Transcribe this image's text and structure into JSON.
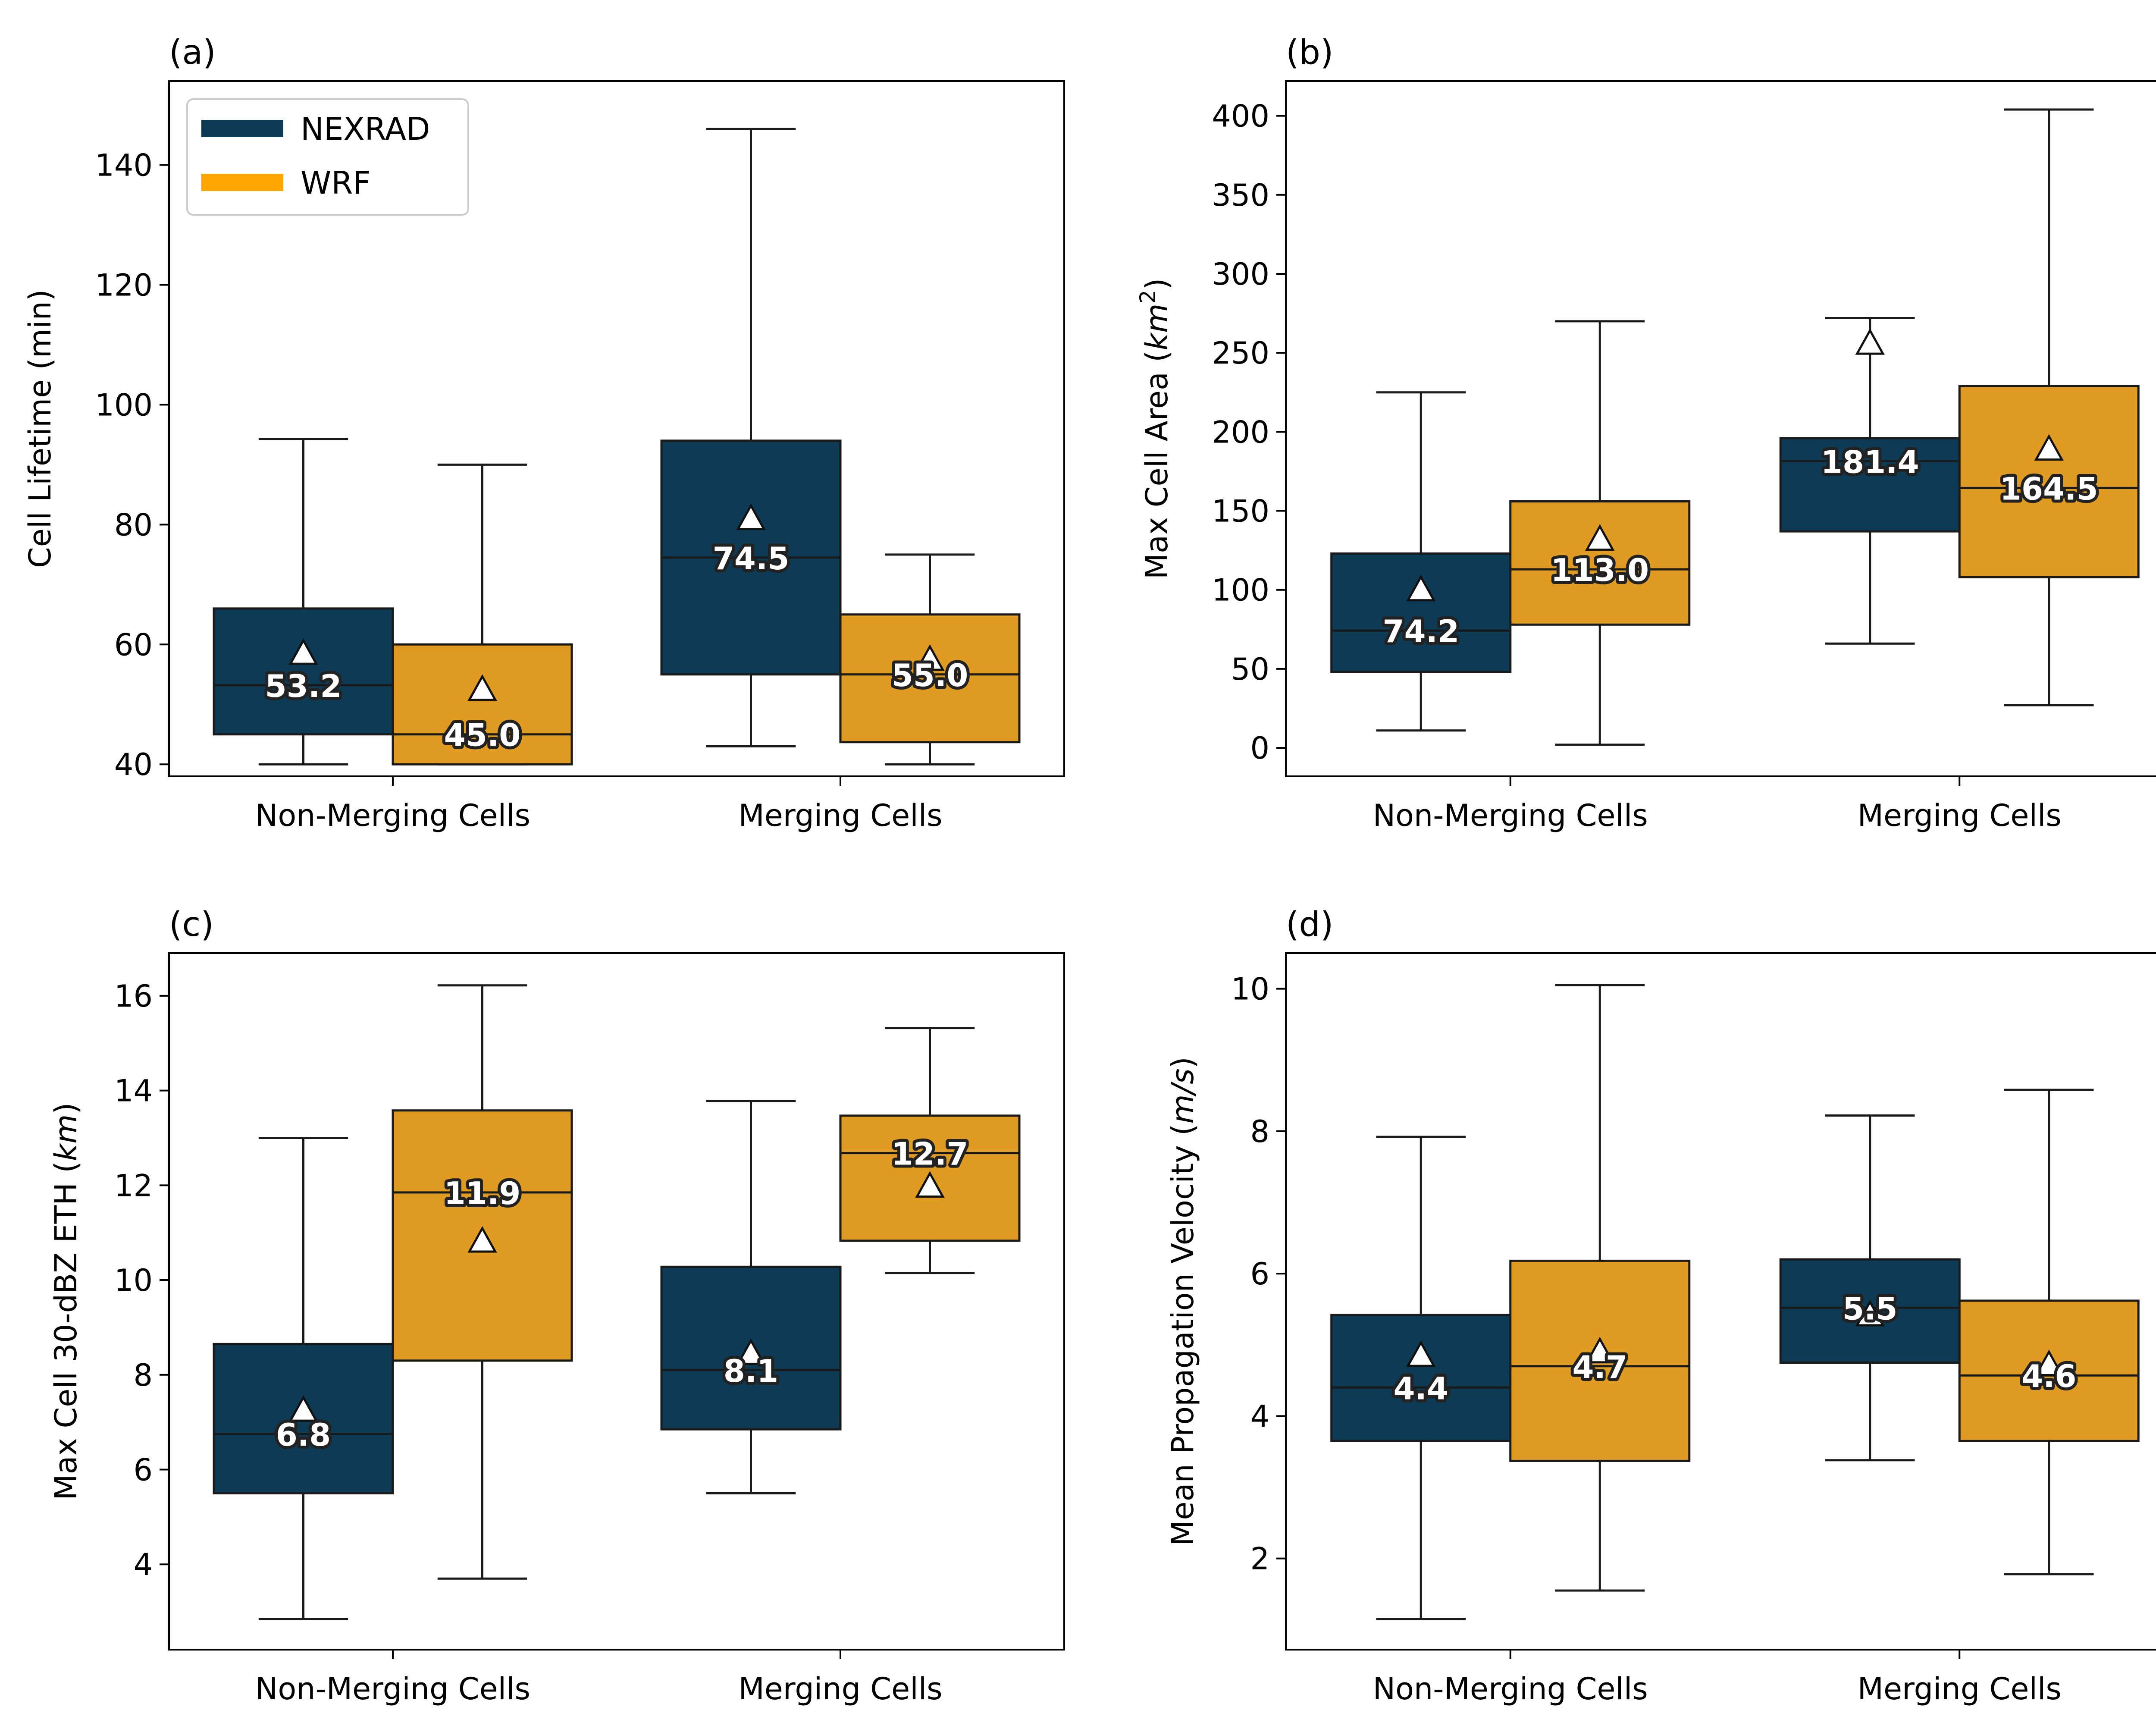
{
  "colors": {
    "NEXRAD": "#0d3a54",
    "WRF": "#e09c22",
    "edge": "#1a1a1a"
  },
  "legend": {
    "placement": "top-left of panel (a)",
    "entries": [
      {
        "name": "NEXRAD",
        "color": "#0d3a54"
      },
      {
        "name": "WRF",
        "color": "#ffa500"
      }
    ]
  },
  "chart_data": [
    {
      "type": "box",
      "panel_label": "(a)",
      "ylabel": "Cell Lifetime (min)",
      "ylim": [
        38,
        154
      ],
      "yticks": [
        40,
        60,
        80,
        100,
        120,
        140
      ],
      "categories": [
        "Non-Merging Cells",
        "Merging Cells"
      ],
      "show_legend": true,
      "series": [
        {
          "name": "NEXRAD",
          "boxes": [
            {
              "whisker_low": 40,
              "q1": 45,
              "median": 53.2,
              "q3": 66,
              "whisker_high": 94.3,
              "mean": 58.5,
              "label": "53.2"
            },
            {
              "whisker_low": 43,
              "q1": 55,
              "median": 74.5,
              "q3": 94,
              "whisker_high": 146,
              "mean": 81,
              "label": "74.5"
            }
          ]
        },
        {
          "name": "WRF",
          "boxes": [
            {
              "whisker_low": 40,
              "q1": 40,
              "median": 45.0,
              "q3": 60,
              "whisker_high": 90,
              "mean": 52.5,
              "label": "45.0"
            },
            {
              "whisker_low": 40,
              "q1": 43.7,
              "median": 55.0,
              "q3": 65,
              "whisker_high": 75,
              "mean": 57.5,
              "label": "55.0"
            }
          ]
        }
      ]
    },
    {
      "type": "box",
      "panel_label": "(b)",
      "ylabel": "Max Cell Area (",
      "ylabel_italic": "km",
      "ylabel_sup": "2",
      "ylabel_end": ")",
      "ylim": [
        -18,
        422
      ],
      "yticks": [
        0,
        50,
        100,
        150,
        200,
        250,
        300,
        350,
        400
      ],
      "categories": [
        "Non-Merging Cells",
        "Merging Cells"
      ],
      "show_legend": false,
      "series": [
        {
          "name": "NEXRAD",
          "boxes": [
            {
              "whisker_low": 11,
              "q1": 48,
              "median": 74.2,
              "q3": 123,
              "whisker_high": 225,
              "mean": 100,
              "label": "74.2"
            },
            {
              "whisker_low": 66,
              "q1": 137,
              "median": 181.4,
              "q3": 196,
              "whisker_high": 272,
              "mean": 256,
              "label": "181.4"
            }
          ]
        },
        {
          "name": "WRF",
          "boxes": [
            {
              "whisker_low": 2,
              "q1": 78,
              "median": 113.0,
              "q3": 156,
              "whisker_high": 270,
              "mean": 132,
              "label": "113.0"
            },
            {
              "whisker_low": 27,
              "q1": 108,
              "median": 164.5,
              "q3": 229,
              "whisker_high": 404,
              "mean": 189,
              "label": "164.5"
            }
          ]
        }
      ]
    },
    {
      "type": "box",
      "panel_label": "(c)",
      "ylabel": "Max Cell 30-dBZ ETH (",
      "ylabel_italic": "km",
      "ylabel_sup": "",
      "ylabel_end": ")",
      "ylim": [
        2.2,
        16.9
      ],
      "yticks": [
        4,
        6,
        8,
        10,
        12,
        14,
        16
      ],
      "categories": [
        "Non-Merging Cells",
        "Merging Cells"
      ],
      "show_legend": false,
      "series": [
        {
          "name": "NEXRAD",
          "boxes": [
            {
              "whisker_low": 2.85,
              "q1": 5.5,
              "median": 6.75,
              "q3": 8.65,
              "whisker_high": 13.0,
              "mean": 7.25,
              "label": "6.8"
            },
            {
              "whisker_low": 5.5,
              "q1": 6.85,
              "median": 8.1,
              "q3": 10.28,
              "whisker_high": 13.78,
              "mean": 8.45,
              "label": "8.1"
            }
          ]
        },
        {
          "name": "WRF",
          "boxes": [
            {
              "whisker_low": 3.7,
              "q1": 8.3,
              "median": 11.85,
              "q3": 13.58,
              "whisker_high": 16.22,
              "mean": 10.82,
              "label": "11.9"
            },
            {
              "whisker_low": 10.15,
              "q1": 10.83,
              "median": 12.68,
              "q3": 13.47,
              "whisker_high": 15.32,
              "mean": 11.98,
              "label": "12.7"
            }
          ]
        }
      ]
    },
    {
      "type": "box",
      "panel_label": "(d)",
      "ylabel": "Mean Propagation Velocity (",
      "ylabel_italic": "m/s",
      "ylabel_sup": "",
      "ylabel_end": ")",
      "ylim": [
        0.72,
        10.5
      ],
      "yticks": [
        2,
        4,
        6,
        8,
        10
      ],
      "categories": [
        "Non-Merging Cells",
        "Merging Cells"
      ],
      "show_legend": false,
      "series": [
        {
          "name": "NEXRAD",
          "boxes": [
            {
              "whisker_low": 1.15,
              "q1": 3.65,
              "median": 4.4,
              "q3": 5.42,
              "whisker_high": 7.92,
              "mean": 4.85,
              "label": "4.4"
            },
            {
              "whisker_low": 3.38,
              "q1": 4.75,
              "median": 5.52,
              "q3": 6.2,
              "whisker_high": 8.22,
              "mean": 5.42,
              "label": "5.5"
            }
          ]
        },
        {
          "name": "WRF",
          "boxes": [
            {
              "whisker_low": 1.55,
              "q1": 3.37,
              "median": 4.7,
              "q3": 6.18,
              "whisker_high": 10.05,
              "mean": 4.9,
              "label": "4.7"
            },
            {
              "whisker_low": 1.78,
              "q1": 3.65,
              "median": 4.57,
              "q3": 5.62,
              "whisker_high": 8.58,
              "mean": 4.72,
              "label": "4.6"
            }
          ]
        }
      ]
    }
  ]
}
